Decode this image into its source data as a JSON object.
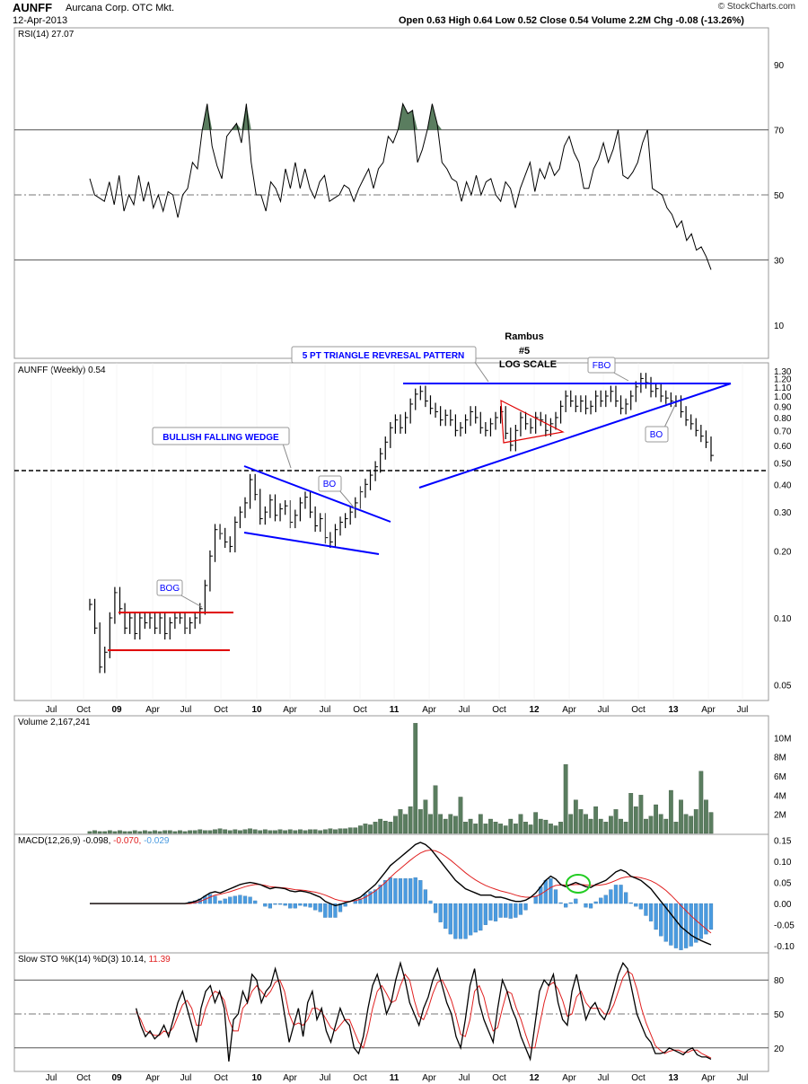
{
  "header": {
    "symbol": "AUNFF",
    "company": "Aurcana Corp. OTC Mkt.",
    "date": "12-Apr-2013",
    "ohlc": "Open 0.63  High 0.64  Low 0.52  Close 0.54  Volume 2.2M  Chg -0.08 (-13.26%)",
    "watermark": "© StockCharts.com"
  },
  "chart_data": [
    {
      "type": "line",
      "panel": "rsi",
      "label": "RSI(14) 27.07",
      "y_ticks": [
        90,
        70,
        50,
        30,
        10
      ],
      "ylim": [
        0,
        100
      ],
      "reference_lines": [
        70,
        30
      ],
      "dashed_line": 50,
      "series": [
        {
          "name": "RSI(14)",
          "values": [
            55,
            50,
            49,
            48,
            54,
            47,
            56,
            45,
            50,
            47,
            56,
            48,
            54,
            46,
            50,
            45,
            51,
            50,
            43,
            50,
            52,
            60,
            58,
            70,
            78,
            65,
            59,
            55,
            68,
            70,
            72,
            66,
            78,
            60,
            50,
            50,
            45,
            54,
            52,
            48,
            58,
            52,
            60,
            52,
            58,
            52,
            49,
            54,
            56,
            48,
            49,
            50,
            53,
            52,
            48,
            52,
            55,
            58,
            52,
            58,
            60,
            68,
            66,
            70,
            78,
            75,
            76,
            60,
            64,
            70,
            78,
            72,
            60,
            58,
            55,
            54,
            48,
            54,
            50,
            56,
            50,
            54,
            55,
            50,
            48,
            54,
            52,
            46,
            52,
            56,
            60,
            51,
            58,
            55,
            60,
            56,
            58,
            65,
            68,
            63,
            60,
            52,
            52,
            58,
            61,
            66,
            60,
            64,
            70,
            56,
            55,
            57,
            60,
            66,
            70,
            52,
            51,
            50,
            46,
            44,
            40,
            42,
            36,
            38,
            33,
            34,
            31,
            27
          ]
        }
      ],
      "overbought_peaks": "shaded green above 70"
    },
    {
      "type": "bar",
      "panel": "price",
      "label": "AUNFF (Weekly) 0.54",
      "scale": "log",
      "y_ticks": [
        1.3,
        1.2,
        1.1,
        1.0,
        0.9,
        0.8,
        0.7,
        0.6,
        0.5,
        0.4,
        0.3,
        0.2,
        0.1,
        0.05
      ],
      "x_ticks": [
        "Jul",
        "Oct",
        "09",
        "Apr",
        "Jul",
        "Oct",
        "10",
        "Apr",
        "Jul",
        "Oct",
        "11",
        "Apr",
        "Jul",
        "Oct",
        "12",
        "Apr",
        "Jul",
        "Oct",
        "13",
        "Apr",
        "Jul"
      ],
      "close": [
        0.115,
        0.09,
        0.06,
        0.07,
        0.1,
        0.13,
        0.11,
        0.09,
        0.1,
        0.085,
        0.1,
        0.095,
        0.1,
        0.09,
        0.1,
        0.085,
        0.095,
        0.1,
        0.1,
        0.09,
        0.095,
        0.1,
        0.11,
        0.14,
        0.19,
        0.25,
        0.24,
        0.22,
        0.21,
        0.27,
        0.3,
        0.33,
        0.42,
        0.36,
        0.28,
        0.3,
        0.34,
        0.29,
        0.31,
        0.32,
        0.27,
        0.29,
        0.33,
        0.35,
        0.3,
        0.26,
        0.28,
        0.23,
        0.22,
        0.25,
        0.27,
        0.28,
        0.3,
        0.33,
        0.37,
        0.4,
        0.44,
        0.48,
        0.55,
        0.62,
        0.72,
        0.78,
        0.72,
        0.8,
        0.92,
        1.02,
        1.05,
        0.95,
        0.88,
        0.85,
        0.78,
        0.82,
        0.78,
        0.7,
        0.72,
        0.78,
        0.85,
        0.8,
        0.72,
        0.7,
        0.75,
        0.8,
        0.85,
        0.68,
        0.6,
        0.7,
        0.8,
        0.75,
        0.72,
        0.8,
        0.78,
        0.7,
        0.75,
        0.8,
        0.9,
        1.0,
        0.95,
        0.9,
        0.95,
        0.88,
        0.9,
        1.0,
        0.95,
        1.0,
        1.05,
        0.95,
        0.88,
        0.92,
        1.0,
        1.1,
        1.2,
        1.15,
        1.05,
        1.08,
        1.0,
        0.98,
        0.95,
        0.95,
        0.85,
        0.78,
        0.75,
        0.7,
        0.66,
        0.62,
        0.54
      ],
      "annotations": [
        "BOG",
        "BULLISH FALLING WEDGE",
        "BO",
        "5 PT TRIANGLE REVRESAL PATTERN",
        "Rambus",
        "#5",
        "LOG SCALE",
        "FBO",
        "BO"
      ]
    },
    {
      "type": "bar",
      "panel": "volume",
      "label": "Volume 2,167,241",
      "y_ticks": [
        "10M",
        "8M",
        "6M",
        "4M",
        "2M"
      ],
      "ylim": [
        0,
        12
      ],
      "values": [
        0.2,
        0.3,
        0.2,
        0.2,
        0.3,
        0.2,
        0.3,
        0.2,
        0.2,
        0.3,
        0.2,
        0.3,
        0.2,
        0.3,
        0.2,
        0.3,
        0.3,
        0.2,
        0.3,
        0.2,
        0.3,
        0.3,
        0.4,
        0.3,
        0.3,
        0.4,
        0.5,
        0.4,
        0.3,
        0.4,
        0.3,
        0.4,
        0.5,
        0.4,
        0.3,
        0.4,
        0.3,
        0.3,
        0.4,
        0.3,
        0.4,
        0.3,
        0.4,
        0.3,
        0.4,
        0.4,
        0.3,
        0.4,
        0.5,
        0.4,
        0.5,
        0.5,
        0.6,
        0.6,
        0.8,
        1.0,
        0.9,
        1.2,
        1.5,
        1.3,
        1.2,
        1.8,
        2.5,
        2.0,
        2.8,
        11.5,
        2.5,
        3.5,
        2.0,
        5.0,
        2.0,
        1.5,
        2.0,
        1.8,
        3.8,
        1.2,
        1.5,
        1.0,
        2.0,
        1.0,
        1.5,
        1.2,
        1.0,
        0.8,
        1.5,
        1.0,
        2.0,
        1.2,
        0.9,
        2.2,
        1.5,
        1.4,
        1.0,
        0.8,
        1.2,
        7.2,
        2.0,
        3.5,
        2.5,
        2.0,
        1.5,
        2.8,
        1.5,
        1.2,
        1.8,
        2.5,
        1.5,
        1.2,
        4.2,
        2.8,
        4.0,
        1.5,
        1.8,
        3.0,
        2.0,
        1.5,
        4.5,
        1.2,
        3.5,
        2.0,
        1.8,
        2.5,
        6.5,
        3.5,
        2.2
      ]
    },
    {
      "type": "line",
      "panel": "macd",
      "label": "MACD(12,26,9) -0.098, -0.070, -0.029",
      "label_parts": {
        "name": "MACD(12,26,9)",
        "macd": "-0.098,",
        "signal": "-0.070,",
        "hist": "-0.029"
      },
      "y_ticks": [
        0.15,
        0.1,
        0.05,
        0.0,
        -0.05,
        -0.1
      ],
      "ylim": [
        -0.115,
        0.16
      ],
      "series": [
        {
          "name": "MACD",
          "values": [
            0,
            0,
            0,
            0,
            0,
            0,
            0,
            0,
            0,
            0,
            0,
            0,
            0,
            0,
            0,
            0,
            0,
            0,
            0,
            0,
            0.002,
            0.005,
            0.01,
            0.018,
            0.025,
            0.028,
            0.025,
            0.03,
            0.035,
            0.04,
            0.045,
            0.048,
            0.05,
            0.048,
            0.045,
            0.04,
            0.035,
            0.038,
            0.037,
            0.035,
            0.03,
            0.028,
            0.03,
            0.028,
            0.025,
            0.02,
            0.015,
            0.005,
            0.0,
            -0.005,
            -0.002,
            0.002,
            0.005,
            0.01,
            0.015,
            0.025,
            0.035,
            0.045,
            0.06,
            0.075,
            0.09,
            0.1,
            0.11,
            0.12,
            0.13,
            0.14,
            0.145,
            0.14,
            0.13,
            0.115,
            0.1,
            0.085,
            0.07,
            0.055,
            0.045,
            0.035,
            0.03,
            0.025,
            0.02,
            0.02,
            0.02,
            0.015,
            0.015,
            0.012,
            0.008,
            0.005,
            0.005,
            0.008,
            0.015,
            0.025,
            0.04,
            0.055,
            0.065,
            0.058,
            0.045,
            0.04,
            0.045,
            0.05,
            0.045,
            0.04,
            0.038,
            0.045,
            0.05,
            0.055,
            0.065,
            0.075,
            0.08,
            0.075,
            0.065,
            0.06,
            0.055,
            0.045,
            0.035,
            0.02,
            0.005,
            -0.01,
            -0.025,
            -0.04,
            -0.055,
            -0.065,
            -0.075,
            -0.082,
            -0.088,
            -0.093,
            -0.098
          ]
        },
        {
          "name": "Signal",
          "values": [
            0,
            0,
            0,
            0,
            0,
            0,
            0,
            0,
            0,
            0,
            0,
            0,
            0,
            0,
            0,
            0,
            0,
            0,
            0,
            0,
            0.0,
            0.002,
            0.005,
            0.01,
            0.015,
            0.02,
            0.022,
            0.025,
            0.028,
            0.032,
            0.036,
            0.04,
            0.043,
            0.045,
            0.045,
            0.043,
            0.04,
            0.039,
            0.038,
            0.037,
            0.035,
            0.033,
            0.032,
            0.031,
            0.029,
            0.027,
            0.024,
            0.02,
            0.015,
            0.01,
            0.007,
            0.005,
            0.005,
            0.007,
            0.01,
            0.015,
            0.022,
            0.03,
            0.04,
            0.05,
            0.062,
            0.073,
            0.083,
            0.093,
            0.103,
            0.112,
            0.12,
            0.125,
            0.127,
            0.125,
            0.12,
            0.112,
            0.103,
            0.093,
            0.083,
            0.073,
            0.064,
            0.056,
            0.049,
            0.043,
            0.038,
            0.034,
            0.03,
            0.027,
            0.024,
            0.02,
            0.017,
            0.015,
            0.015,
            0.017,
            0.022,
            0.03,
            0.038,
            0.043,
            0.044,
            0.044,
            0.044,
            0.045,
            0.045,
            0.044,
            0.043,
            0.043,
            0.044,
            0.046,
            0.05,
            0.055,
            0.06,
            0.063,
            0.064,
            0.063,
            0.061,
            0.058,
            0.054,
            0.048,
            0.04,
            0.031,
            0.02,
            0.008,
            -0.005,
            -0.017,
            -0.029,
            -0.04,
            -0.05,
            -0.06,
            -0.07
          ]
        }
      ],
      "histogram": "difference of MACD and Signal",
      "highlight": "green circle around MACD crossover"
    },
    {
      "type": "line",
      "panel": "stochastic",
      "label": "Slow STO %K(14) %D(3) 10.14, 11.39",
      "label_parts": {
        "name": "Slow STO %K(14) %D(3)",
        "k": "10.14,",
        "d": "11.39"
      },
      "y_ticks": [
        80,
        50,
        20
      ],
      "ylim": [
        0,
        100
      ],
      "reference_lines": [
        80,
        20
      ],
      "dashed_line": 50,
      "series": [
        {
          "name": "%K",
          "values": [
            55,
            40,
            30,
            35,
            28,
            32,
            40,
            30,
            45,
            60,
            70,
            55,
            40,
            25,
            55,
            70,
            75,
            60,
            70,
            55,
            8,
            45,
            50,
            70,
            60,
            85,
            80,
            60,
            70,
            75,
            90,
            75,
            50,
            25,
            40,
            55,
            30,
            60,
            70,
            45,
            55,
            35,
            25,
            40,
            55,
            45,
            40,
            20,
            15,
            30,
            55,
            75,
            85,
            70,
            50,
            60,
            80,
            95,
            80,
            60,
            50,
            40,
            55,
            65,
            80,
            90,
            75,
            60,
            50,
            30,
            20,
            45,
            75,
            90,
            60,
            45,
            35,
            25,
            55,
            80,
            70,
            55,
            45,
            30,
            20,
            10,
            40,
            70,
            80,
            75,
            85,
            60,
            45,
            40,
            70,
            85,
            65,
            45,
            55,
            60,
            50,
            45,
            55,
            70,
            85,
            95,
            90,
            70,
            50,
            40,
            30,
            25,
            15,
            15,
            16,
            20,
            18,
            16,
            14,
            18,
            20,
            14,
            12,
            12,
            10
          ]
        },
        {
          "name": "%D",
          "values": [
            52,
            45,
            35,
            33,
            31,
            31,
            35,
            33,
            38,
            48,
            58,
            62,
            55,
            40,
            40,
            55,
            65,
            70,
            68,
            62,
            45,
            35,
            35,
            55,
            60,
            70,
            75,
            70,
            65,
            70,
            78,
            80,
            70,
            50,
            40,
            42,
            40,
            45,
            55,
            55,
            52,
            45,
            38,
            35,
            40,
            45,
            45,
            35,
            25,
            20,
            35,
            55,
            70,
            75,
            68,
            60,
            62,
            75,
            85,
            80,
            62,
            48,
            45,
            55,
            68,
            78,
            80,
            72,
            62,
            48,
            32,
            30,
            45,
            70,
            75,
            65,
            48,
            35,
            38,
            55,
            70,
            68,
            55,
            45,
            32,
            20,
            20,
            40,
            60,
            75,
            78,
            72,
            62,
            48,
            50,
            65,
            70,
            60,
            55,
            55,
            55,
            50,
            50,
            58,
            70,
            82,
            88,
            85,
            72,
            55,
            42,
            32,
            22,
            18,
            15,
            17,
            18,
            18,
            16,
            16,
            18,
            18,
            15,
            13,
            11
          ]
        }
      ]
    }
  ],
  "colors": {
    "pattern_blue": "#0000ff",
    "rect_red": "#e00000",
    "volume_green": "#5a7d5f",
    "macd_hist_blue": "#4a9be0",
    "macd_signal_red": "#e02020",
    "highlight_green": "#22cc22"
  }
}
